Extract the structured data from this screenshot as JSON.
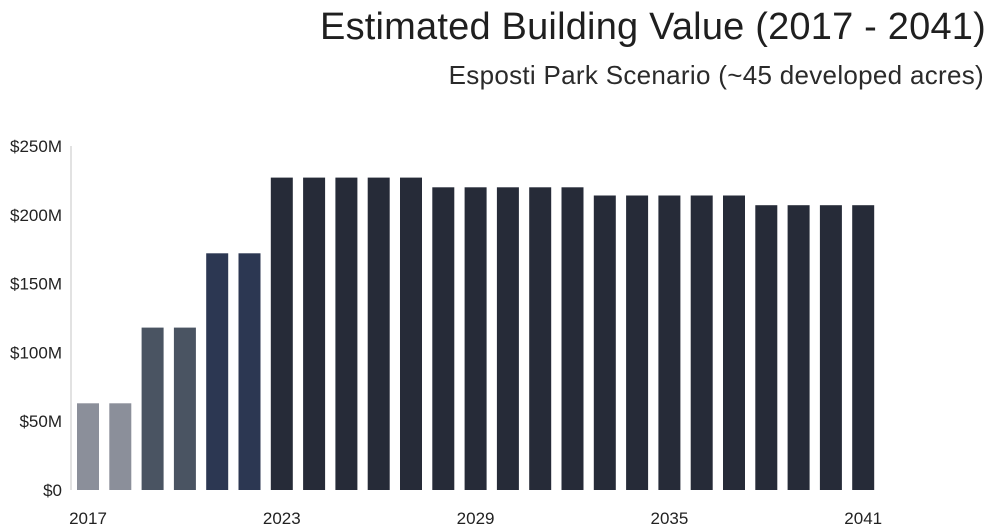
{
  "chart_data": {
    "type": "bar",
    "title": "Estimated Building Value (2017 - 2041)",
    "subtitle": "Esposti Park Scenario (~45 developed acres)",
    "categories": [
      "2017",
      "2018",
      "2019",
      "2020",
      "2021",
      "2022",
      "2023",
      "2024",
      "2025",
      "2026",
      "2027",
      "2028",
      "2029",
      "2030",
      "2031",
      "2032",
      "2033",
      "2034",
      "2035",
      "2036",
      "2037",
      "2038",
      "2039",
      "2040",
      "2041"
    ],
    "values": [
      63,
      63,
      118,
      118,
      172,
      172,
      227,
      227,
      227,
      227,
      227,
      220,
      220,
      220,
      220,
      220,
      214,
      214,
      214,
      214,
      214,
      207,
      207,
      207,
      207
    ],
    "value_unit": "$M",
    "ylim": [
      0,
      250
    ],
    "y_ticks": [
      {
        "value": 0,
        "label": "$0"
      },
      {
        "value": 50,
        "label": "$50M"
      },
      {
        "value": 100,
        "label": "$100M"
      },
      {
        "value": 150,
        "label": "$150M"
      },
      {
        "value": 200,
        "label": "$200M"
      },
      {
        "value": 250,
        "label": "$250M"
      }
    ],
    "x_tick_labels": [
      "2017",
      "2023",
      "2029",
      "2035",
      "2041"
    ],
    "bar_colors": [
      "#8b8f9a",
      "#8b8f9a",
      "#4a5462",
      "#4a5462",
      "#2c3752",
      "#2c3752",
      "#262b38",
      "#262b38",
      "#262b38",
      "#262b38",
      "#262b38",
      "#262b38",
      "#262b38",
      "#262b38",
      "#262b38",
      "#262b38",
      "#262b38",
      "#262b38",
      "#262b38",
      "#262b38",
      "#262b38",
      "#262b38",
      "#262b38",
      "#262b38",
      "#262b38"
    ],
    "grid": false,
    "legend": "none"
  }
}
